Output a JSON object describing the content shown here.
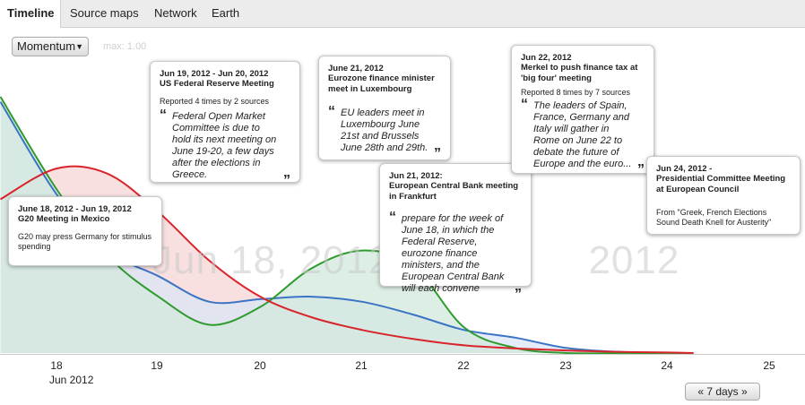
{
  "tabs": [
    "Timeline",
    "Source maps",
    "Network",
    "Earth"
  ],
  "controls": {
    "mode_select": "Momentum",
    "max_label": "max: 1.00",
    "pager": "« 7 days »"
  },
  "watermark": {
    "left": "Jun 18, 2012",
    "right": "2012"
  },
  "axis": {
    "ticks": [
      "18",
      "19",
      "20",
      "21",
      "22",
      "23",
      "24",
      "25"
    ],
    "month_label": "Jun 2012"
  },
  "colors": {
    "red": "#d9242b",
    "blue": "#3b74c4",
    "green": "#2f9b2f",
    "red_fill": "#f7d6d6",
    "blue_fill": "#d9e6f5",
    "green_fill": "#d2e9dc"
  },
  "chart_data": {
    "type": "area",
    "x": [
      17.45,
      18.0,
      18.5,
      19.0,
      19.5,
      20.0,
      20.5,
      21.0,
      21.5,
      22.0,
      22.5,
      23.0,
      23.5,
      24.0,
      24.25
    ],
    "series": [
      {
        "values": [
          0.6,
          0.72,
          0.7,
          0.55,
          0.36,
          0.22,
          0.14,
          0.09,
          0.055,
          0.03,
          0.018,
          0.01,
          0.005,
          0.002,
          0.0
        ]
      },
      {
        "values": [
          0.98,
          0.62,
          0.4,
          0.3,
          0.2,
          0.21,
          0.22,
          0.2,
          0.15,
          0.09,
          0.06,
          0.02,
          0.005,
          0.001,
          0.0
        ]
      },
      {
        "values": [
          1.0,
          0.64,
          0.38,
          0.22,
          0.11,
          0.18,
          0.33,
          0.4,
          0.34,
          0.1,
          0.02,
          0.0,
          0.0,
          0.0,
          0.0
        ]
      }
    ],
    "ylim": [
      0,
      1.0
    ]
  },
  "cards": [
    {
      "date": "June 18, 2012 - Jun 19, 2012",
      "title": "G20 Meeting in Mexico",
      "body": "G20 may press Germany for stimulus spending"
    },
    {
      "date": "Jun 19, 2012 - Jun 20, 2012",
      "title": "US Federal Reserve Meeting",
      "reported": "Reported 4 times by 2 sources",
      "quote": "Federal Open Market Committee is due to hold its next meeting on June 19-20, a few days after the elections in Greece."
    },
    {
      "date": "June 21, 2012",
      "title": "Eurozone finance minister meet in Luxembourg",
      "quote": "EU leaders meet in Luxembourg June 21st and Brussels June 28th and 29th."
    },
    {
      "date": "Jun 21, 2012:",
      "title": "European Central Bank meeting in Frankfurt",
      "quote": "prepare for the week of June 18, in which the Federal Reserve, eurozone finance ministers, and the European Central Bank will each convene"
    },
    {
      "date": "Jun 22, 2012",
      "title": "Merkel to push finance tax at 'big four' meeting",
      "reported": "Reported 8 times by 7 sources",
      "quote": "The leaders of Spain, France, Germany and Italy will gather in Rome on June 22 to debate the future of Europe and the euro..."
    },
    {
      "date": "Jun 24, 2012 -",
      "title": "Presidential Committee Meeting at European Council",
      "body": "From \"Greek, French Elections Sound Death Knell for Austerity\""
    }
  ]
}
